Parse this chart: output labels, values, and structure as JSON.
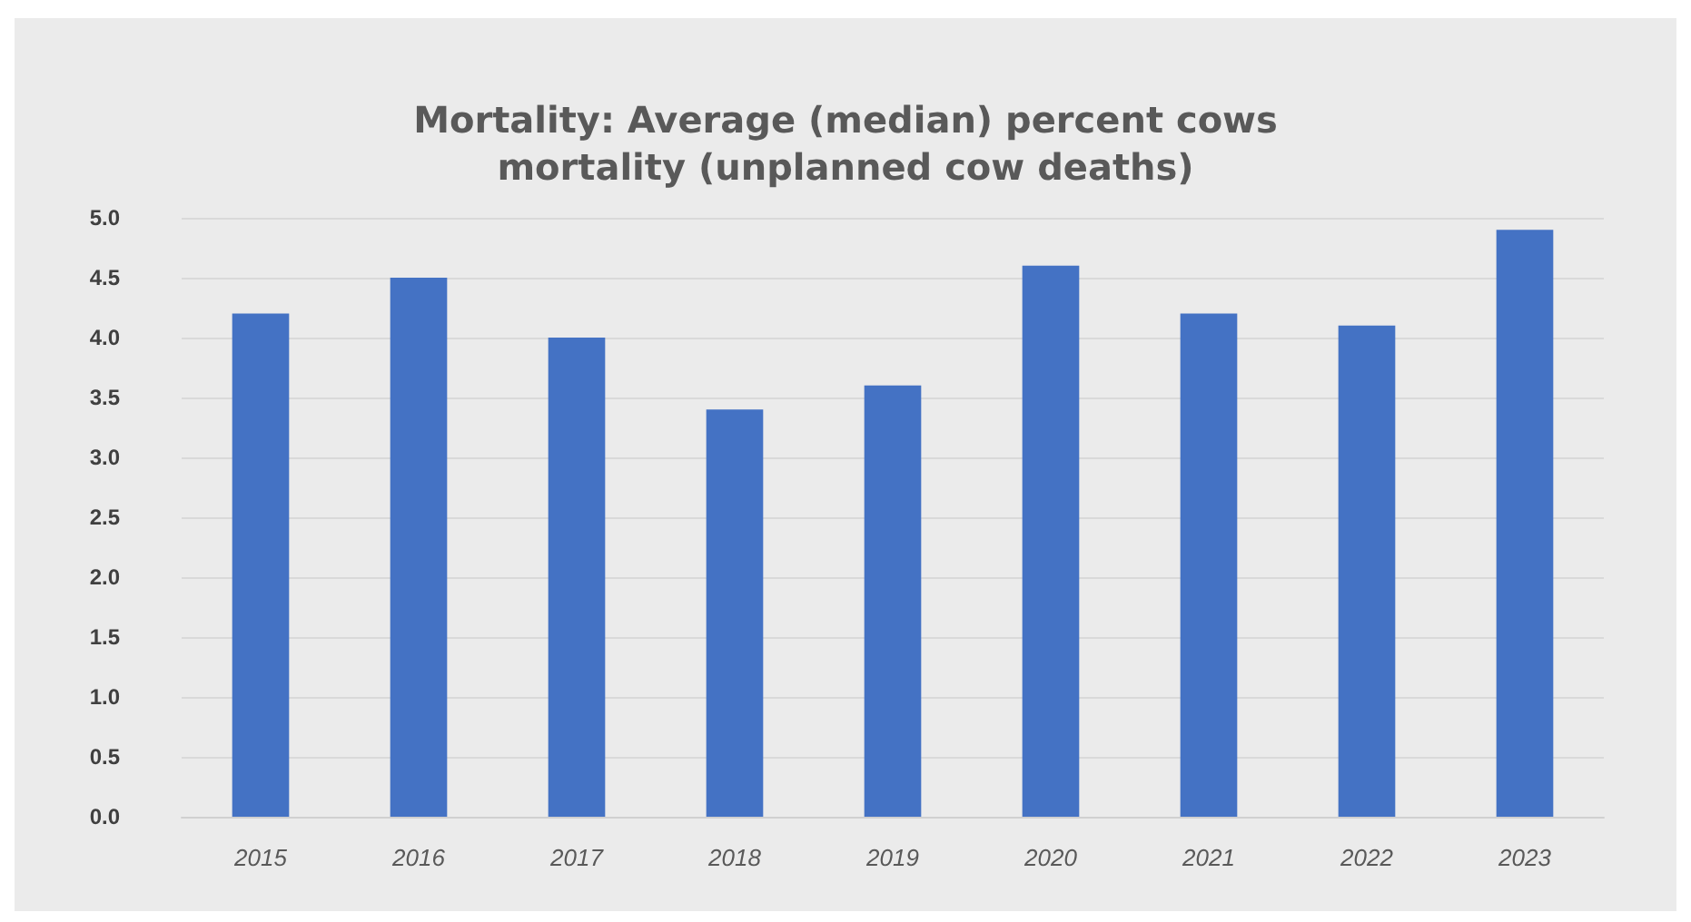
{
  "chart_data": {
    "type": "bar",
    "title": "Mortality: Average (median) percent cows\nmortality (unplanned cow deaths)",
    "categories": [
      "2015",
      "2016",
      "2017",
      "2018",
      "2019",
      "2020",
      "2021",
      "2022",
      "2023"
    ],
    "values": [
      4.2,
      4.5,
      4.0,
      3.4,
      3.6,
      4.6,
      4.2,
      4.1,
      4.9
    ],
    "color": "#4472c4",
    "ylim": [
      0,
      5
    ],
    "yticks": [
      {
        "value": 0,
        "label": "0.0"
      },
      0.5,
      {
        "value": 1,
        "label": "1.0"
      },
      1.5,
      {
        "value": 2,
        "label": "2.0"
      },
      2.5,
      {
        "value": 3,
        "label": "3.0"
      },
      3.5,
      {
        "value": 4,
        "label": "4.0"
      },
      4.5,
      {
        "value": 5,
        "label": "5.0"
      }
    ],
    "grid": "y"
  }
}
